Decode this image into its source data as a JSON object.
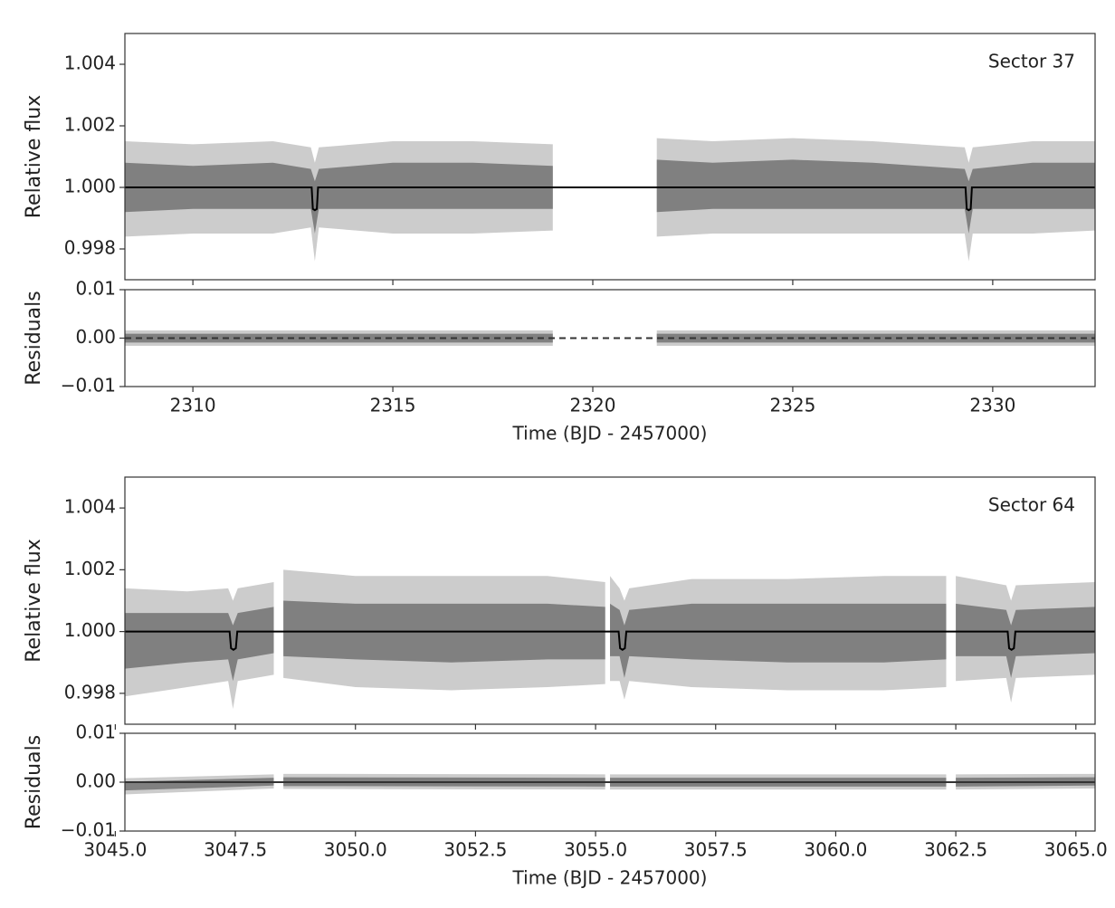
{
  "chart_data": [
    {
      "type": "lightcurve",
      "annotation": "Sector 37",
      "ylabel": "Relative flux",
      "xlim": [
        2308.3,
        2332.56
      ],
      "ylim": [
        0.997,
        1.005
      ],
      "yticks": [
        {
          "value": 0.998,
          "label": "0.998"
        },
        {
          "value": 1,
          "label": "1.000"
        },
        {
          "value": 1.002,
          "label": "1.002"
        },
        {
          "value": 1.004,
          "label": "1.004"
        }
      ],
      "series": [
        {
          "kind": "band",
          "color": "#cccccc",
          "x": [
            2308.3,
            2310,
            2312,
            2312.95,
            2313.05,
            2313.15,
            2315,
            2317,
            2319.0,
            null,
            2321.6,
            2323,
            2325,
            2327,
            2329.3,
            2329.4,
            2329.5,
            2331,
            2332.56
          ],
          "high": [
            1.0015,
            1.0014,
            1.0015,
            1.0013,
            1.0008,
            1.0013,
            1.0015,
            1.0015,
            1.0014,
            null,
            1.0016,
            1.0015,
            1.0016,
            1.0015,
            1.0013,
            1.0008,
            1.0013,
            1.0015,
            1.0015
          ],
          "low": [
            0.9984,
            0.9985,
            0.9985,
            0.9987,
            0.9976,
            0.9987,
            0.9985,
            0.9985,
            0.9986,
            null,
            0.9984,
            0.9985,
            0.9985,
            0.9985,
            0.9985,
            0.9976,
            0.9985,
            0.9985,
            0.9986
          ]
        },
        {
          "kind": "band",
          "color": "#808080",
          "x": [
            2308.3,
            2310,
            2312,
            2312.95,
            2313.05,
            2313.15,
            2315,
            2317,
            2319.0,
            null,
            2321.6,
            2323,
            2325,
            2327,
            2329.3,
            2329.4,
            2329.5,
            2331,
            2332.56
          ],
          "high": [
            1.0008,
            1.0007,
            1.0008,
            1.0006,
            1.0002,
            1.0006,
            1.0008,
            1.0008,
            1.0007,
            null,
            1.0009,
            1.0008,
            1.0009,
            1.0008,
            1.0006,
            1.0002,
            1.0006,
            1.0008,
            1.0008
          ],
          "low": [
            0.9992,
            0.9993,
            0.9993,
            0.9993,
            0.9985,
            0.9993,
            0.9993,
            0.9993,
            0.9993,
            null,
            0.9992,
            0.9993,
            0.9993,
            0.9993,
            0.9993,
            0.9985,
            0.9993,
            0.9993,
            0.9993
          ]
        },
        {
          "kind": "line",
          "color": "#000000",
          "dashed": false,
          "x": [
            2308.3,
            2312.97,
            2313.0,
            2313.05,
            2313.1,
            2313.13,
            2329.32,
            2329.35,
            2329.4,
            2329.45,
            2329.48,
            2332.56
          ],
          "values": [
            1,
            1,
            0.9993,
            0.99926,
            0.9993,
            1,
            1,
            0.9993,
            0.99926,
            0.9993,
            1,
            1
          ]
        }
      ]
    },
    {
      "type": "residuals",
      "ylabel": "Residuals",
      "xlabel": "Time (BJD - 2457000)",
      "xlim": [
        2308.3,
        2332.56
      ],
      "ylim": [
        -0.01,
        0.01
      ],
      "xticks": [
        2310,
        2315,
        2320,
        2325,
        2330
      ],
      "yticks": [
        {
          "value": -0.01,
          "label": "−0.01"
        },
        {
          "value": 0,
          "label": "0.00"
        },
        {
          "value": 0.01,
          "label": "0.01"
        }
      ],
      "series": [
        {
          "kind": "band",
          "color": "#cccccc",
          "x": [
            2308.3,
            2319.0,
            null,
            2321.6,
            2332.56
          ],
          "high": [
            0.0016,
            0.0016,
            null,
            0.0016,
            0.0016
          ],
          "low": [
            -0.0016,
            -0.0016,
            null,
            -0.0016,
            -0.0016
          ]
        },
        {
          "kind": "band",
          "color": "#808080",
          "x": [
            2308.3,
            2319.0,
            null,
            2321.6,
            2332.56
          ],
          "high": [
            0.0009,
            0.0009,
            null,
            0.0009,
            0.0009
          ],
          "low": [
            -0.0009,
            -0.0009,
            null,
            -0.0009,
            -0.0009
          ]
        },
        {
          "kind": "line",
          "color": "#333333",
          "dashed": true,
          "x": [
            2308.3,
            2332.56
          ],
          "values": [
            0,
            0
          ]
        }
      ]
    },
    {
      "type": "lightcurve",
      "annotation": "Sector 64",
      "ylabel": "Relative flux",
      "xlim": [
        3045.2,
        3065.4
      ],
      "ylim": [
        0.997,
        1.005
      ],
      "yticks": [
        {
          "value": 0.998,
          "label": "0.998"
        },
        {
          "value": 1,
          "label": "1.000"
        },
        {
          "value": 1.002,
          "label": "1.002"
        },
        {
          "value": 1.004,
          "label": "1.004"
        }
      ],
      "series": [
        {
          "kind": "band",
          "color": "#cccccc",
          "x": [
            3045.2,
            3046.5,
            3047.35,
            3047.45,
            3047.55,
            3048.3,
            null,
            3048.5,
            3050,
            3052,
            3054,
            3055.2,
            null,
            3055.3,
            3055.5,
            3055.6,
            3055.7,
            3057,
            3059,
            3061,
            3062.3,
            null,
            3062.5,
            3063.55,
            3063.65,
            3063.75,
            3065.4
          ],
          "high": [
            1.0014,
            1.0013,
            1.0014,
            1.001,
            1.0014,
            1.0016,
            null,
            1.002,
            1.0018,
            1.0018,
            1.0018,
            1.0016,
            null,
            1.0018,
            1.0014,
            1.001,
            1.0014,
            1.0017,
            1.0017,
            1.0018,
            1.0018,
            null,
            1.0018,
            1.0015,
            1.001,
            1.0015,
            1.0016
          ],
          "low": [
            0.9979,
            0.9982,
            0.9984,
            0.9975,
            0.9984,
            0.9986,
            null,
            0.9985,
            0.9982,
            0.9981,
            0.9982,
            0.9983,
            null,
            0.9984,
            0.9984,
            0.9978,
            0.9984,
            0.9982,
            0.9981,
            0.9981,
            0.9982,
            null,
            0.9984,
            0.9985,
            0.9977,
            0.9985,
            0.9986
          ]
        },
        {
          "kind": "band",
          "color": "#808080",
          "x": [
            3045.2,
            3046.5,
            3047.35,
            3047.45,
            3047.55,
            3048.3,
            null,
            3048.5,
            3050,
            3052,
            3054,
            3055.2,
            null,
            3055.3,
            3055.5,
            3055.6,
            3055.7,
            3057,
            3059,
            3061,
            3062.3,
            null,
            3062.5,
            3063.55,
            3063.65,
            3063.75,
            3065.4
          ],
          "high": [
            1.0006,
            1.0006,
            1.0006,
            1.0002,
            1.0006,
            1.0008,
            null,
            1.001,
            1.0009,
            1.0009,
            1.0009,
            1.0008,
            null,
            1.0009,
            1.0007,
            1.0002,
            1.0007,
            1.0009,
            1.0009,
            1.0009,
            1.0009,
            null,
            1.0009,
            1.0007,
            1.0002,
            1.0007,
            1.0008
          ],
          "low": [
            0.9988,
            0.999,
            0.9991,
            0.9984,
            0.9991,
            0.9993,
            null,
            0.9992,
            0.9991,
            0.999,
            0.9991,
            0.9991,
            null,
            0.9992,
            0.9992,
            0.9985,
            0.9992,
            0.9991,
            0.999,
            0.999,
            0.9991,
            null,
            0.9992,
            0.9992,
            0.9985,
            0.9992,
            0.9993
          ]
        },
        {
          "kind": "line",
          "color": "#000000",
          "dashed": false,
          "x": [
            3045.2,
            3047.38,
            3047.41,
            3047.46,
            3047.51,
            3047.54,
            3055.48,
            3055.51,
            3055.56,
            3055.61,
            3055.64,
            3063.58,
            3063.61,
            3063.66,
            3063.71,
            3063.74,
            3065.4
          ],
          "values": [
            1,
            1,
            0.99946,
            0.99941,
            0.99946,
            1,
            1,
            0.99946,
            0.99941,
            0.99946,
            1,
            1,
            0.99946,
            0.99941,
            0.99946,
            1,
            1
          ]
        }
      ]
    },
    {
      "type": "residuals",
      "ylabel": "Residuals",
      "xlabel": "Time (BJD - 2457000)",
      "xlim": [
        3045.2,
        3065.4
      ],
      "ylim": [
        -0.01,
        0.01
      ],
      "xticks": [
        {
          "value": 3045,
          "label": "3045.0"
        },
        3047.5,
        {
          "value": 3050,
          "label": "3050.0"
        },
        3052.5,
        {
          "value": 3055,
          "label": "3055.0"
        },
        3057.5,
        {
          "value": 3060,
          "label": "3060.0"
        },
        3062.5,
        {
          "value": 3065,
          "label": "3065.0"
        }
      ],
      "yticks": [
        {
          "value": -0.01,
          "label": "−0.01"
        },
        {
          "value": 0,
          "label": "0.00"
        },
        {
          "value": 0.01,
          "label": "0.01"
        }
      ],
      "series": [
        {
          "kind": "band",
          "color": "#cccccc",
          "x": [
            3045.2,
            3048.3,
            null,
            3048.5,
            3055.2,
            null,
            3055.3,
            3062.3,
            null,
            3062.5,
            3065.4
          ],
          "high": [
            0.0008,
            0.0016,
            null,
            0.0017,
            0.0016,
            null,
            0.0016,
            0.0016,
            null,
            0.0016,
            0.0017
          ],
          "low": [
            -0.0025,
            -0.0013,
            null,
            -0.0014,
            -0.0015,
            null,
            -0.0015,
            -0.0015,
            null,
            -0.0015,
            -0.0013
          ]
        },
        {
          "kind": "band",
          "color": "#808080",
          "x": [
            3045.2,
            3048.3,
            null,
            3048.5,
            3055.2,
            null,
            3055.3,
            3062.3,
            null,
            3062.5,
            3065.4
          ],
          "high": [
            0.0001,
            0.0009,
            null,
            0.001,
            0.0009,
            null,
            0.0009,
            0.0009,
            null,
            0.0009,
            0.001
          ],
          "low": [
            -0.0017,
            -0.0007,
            null,
            -0.0008,
            -0.0009,
            null,
            -0.0009,
            -0.0009,
            null,
            -0.0009,
            -0.0007
          ]
        },
        {
          "kind": "line",
          "color": "#333333",
          "dashed": false,
          "x": [
            3045.2,
            3065.4
          ],
          "values": [
            0,
            0
          ]
        }
      ]
    }
  ]
}
